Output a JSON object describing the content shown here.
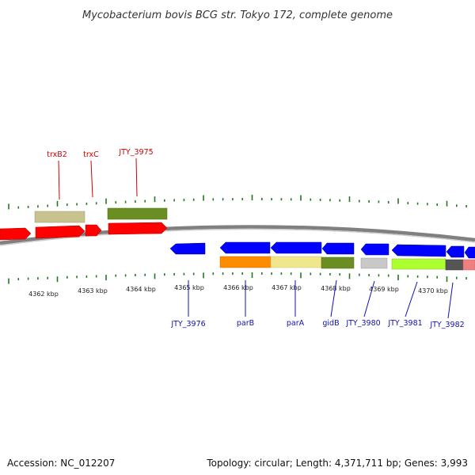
{
  "title": "Mycobacterium bovis BCG str. Tokyo 172, complete genome",
  "footer": {
    "accession": "Accession: NC_012207",
    "summary": "Topology: circular; Length: 4,371,711 bp; Genes: 3,993"
  },
  "colors": {
    "backbone": "#808080",
    "tick": "#1f7a1f",
    "forward_label": "#cc0000",
    "reverse_label": "#1010b0"
  },
  "tick_labels": [
    "4362 kbp",
    "4363 kbp",
    "4364 kbp",
    "4365 kbp",
    "4366 kbp",
    "4367 kbp",
    "4368 kbp",
    "4369 kbp",
    "4370 kbp"
  ],
  "gene_labels": {
    "forward": [
      "trxB2",
      "trxC",
      "JTY_3975"
    ],
    "reverse": [
      "JTY_3976",
      "parB",
      "parA",
      "gidB",
      "JTY_3980",
      "JTY_3981",
      "JTY_3982"
    ]
  },
  "feature_colors": {
    "cds_forward": "#ff0000",
    "cds_reverse": "#0000ff",
    "func_trxB2": "#c8c28e",
    "func_JTY_3975": "#6b8e23",
    "func_parB": "#ff8c00",
    "func_parA": "#f0e68c",
    "func_gidB": "#6b8e23",
    "func_JTY_3980": "#c8c8c8",
    "func_JTY_3981": "#adff2f",
    "func_JTY_3982_a": "#555555",
    "func_JTY_3982_b": "#f08080"
  }
}
